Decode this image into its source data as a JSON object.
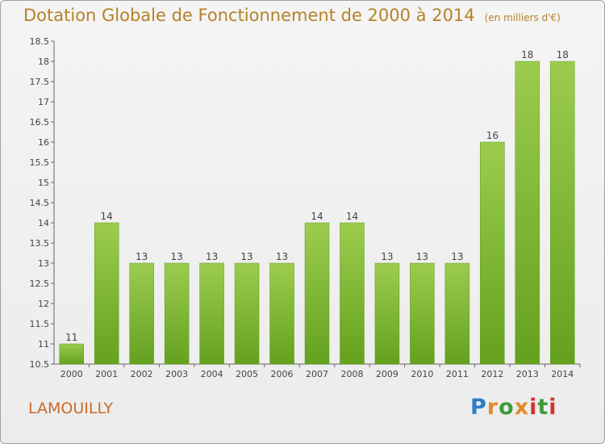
{
  "title": "Dotation Globale de Fonctionnement de 2000 à 2014",
  "subtitle": "(en milliers d'€)",
  "commune": "LAMOUILLY",
  "logo_text": "Proxiti",
  "colors": {
    "title": "#b58228",
    "bar_top": "#9ccc4e",
    "bar_bottom": "#64a11e",
    "commune": "#c76a2a"
  },
  "chart_data": {
    "type": "bar",
    "categories": [
      "2000",
      "2001",
      "2002",
      "2003",
      "2004",
      "2005",
      "2006",
      "2007",
      "2008",
      "2009",
      "2010",
      "2011",
      "2012",
      "2013",
      "2014"
    ],
    "values": [
      11,
      14,
      13,
      13,
      13,
      13,
      13,
      14,
      14,
      13,
      13,
      13,
      16,
      18,
      18
    ],
    "data_labels": [
      "11",
      "14",
      "13",
      "13",
      "13",
      "13",
      "13",
      "14",
      "14",
      "13",
      "13",
      "13",
      "16",
      "18",
      "18"
    ],
    "ylim": [
      10.5,
      18.5
    ],
    "yticks": [
      10.5,
      11,
      11.5,
      12,
      12.5,
      13,
      13.5,
      14,
      14.5,
      15,
      15.5,
      16,
      16.5,
      17,
      17.5,
      18,
      18.5
    ],
    "ytick_labels": [
      "10.5",
      "11",
      "11.5",
      "12",
      "12.5",
      "13",
      "13.5",
      "14",
      "14.5",
      "15",
      "15.5",
      "16",
      "16.5",
      "17",
      "17.5",
      "18",
      "18.5"
    ],
    "grid": false
  }
}
